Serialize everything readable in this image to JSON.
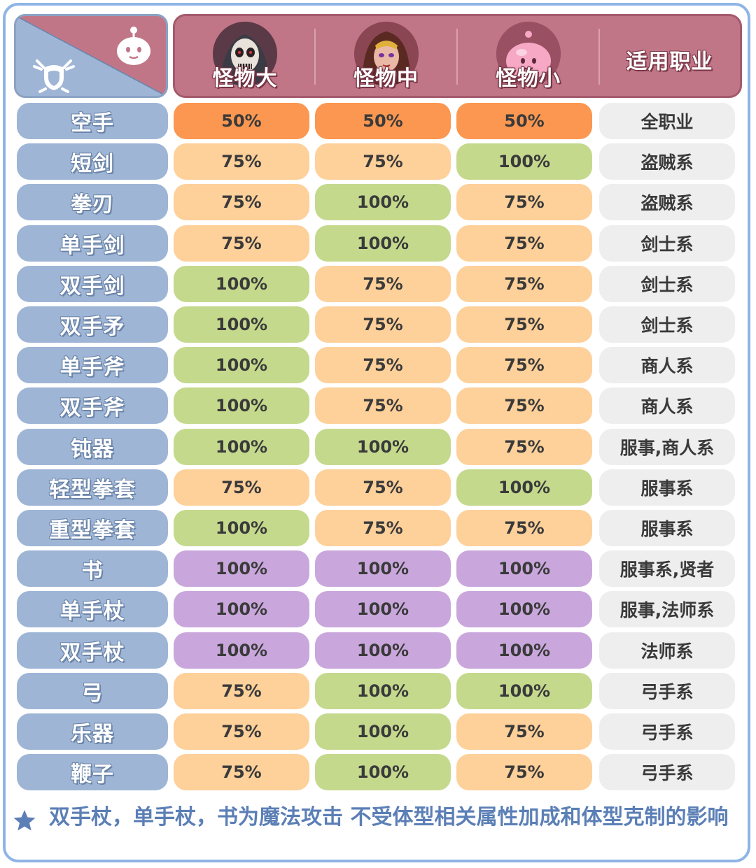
{
  "colors": {
    "p50": "#fb9750",
    "p75": "#fed09a",
    "p100": "#c5d98d",
    "magic": "#c9a7dc"
  },
  "corner": {
    "left_icon": "class-emblem-icon",
    "right_icon": "poring-face-icon"
  },
  "header": {
    "columns": [
      {
        "label": "怪物大",
        "icon": "skeleton-monster-icon"
      },
      {
        "label": "怪物中",
        "icon": "female-monster-icon"
      },
      {
        "label": "怪物小",
        "icon": "poring-monster-icon"
      }
    ],
    "job_label": "适用职业"
  },
  "rows": [
    {
      "weapon": "空手",
      "cells": [
        {
          "v": "50%",
          "c": "p50"
        },
        {
          "v": "50%",
          "c": "p50"
        },
        {
          "v": "50%",
          "c": "p50"
        }
      ],
      "job": "全职业"
    },
    {
      "weapon": "短剑",
      "cells": [
        {
          "v": "75%",
          "c": "p75"
        },
        {
          "v": "75%",
          "c": "p75"
        },
        {
          "v": "100%",
          "c": "p100"
        }
      ],
      "job": "盗贼系"
    },
    {
      "weapon": "拳刃",
      "cells": [
        {
          "v": "75%",
          "c": "p75"
        },
        {
          "v": "100%",
          "c": "p100"
        },
        {
          "v": "75%",
          "c": "p75"
        }
      ],
      "job": "盗贼系"
    },
    {
      "weapon": "单手剑",
      "cells": [
        {
          "v": "75%",
          "c": "p75"
        },
        {
          "v": "100%",
          "c": "p100"
        },
        {
          "v": "75%",
          "c": "p75"
        }
      ],
      "job": "剑士系"
    },
    {
      "weapon": "双手剑",
      "cells": [
        {
          "v": "100%",
          "c": "p100"
        },
        {
          "v": "75%",
          "c": "p75"
        },
        {
          "v": "75%",
          "c": "p75"
        }
      ],
      "job": "剑士系"
    },
    {
      "weapon": "双手矛",
      "cells": [
        {
          "v": "100%",
          "c": "p100"
        },
        {
          "v": "75%",
          "c": "p75"
        },
        {
          "v": "75%",
          "c": "p75"
        }
      ],
      "job": "剑士系"
    },
    {
      "weapon": "单手斧",
      "cells": [
        {
          "v": "100%",
          "c": "p100"
        },
        {
          "v": "75%",
          "c": "p75"
        },
        {
          "v": "75%",
          "c": "p75"
        }
      ],
      "job": "商人系"
    },
    {
      "weapon": "双手斧",
      "cells": [
        {
          "v": "100%",
          "c": "p100"
        },
        {
          "v": "75%",
          "c": "p75"
        },
        {
          "v": "75%",
          "c": "p75"
        }
      ],
      "job": "商人系"
    },
    {
      "weapon": "钝器",
      "cells": [
        {
          "v": "100%",
          "c": "p100"
        },
        {
          "v": "100%",
          "c": "p100"
        },
        {
          "v": "75%",
          "c": "p75"
        }
      ],
      "job": "服事,商人系"
    },
    {
      "weapon": "轻型拳套",
      "cells": [
        {
          "v": "75%",
          "c": "p75"
        },
        {
          "v": "75%",
          "c": "p75"
        },
        {
          "v": "100%",
          "c": "p100"
        }
      ],
      "job": "服事系"
    },
    {
      "weapon": "重型拳套",
      "cells": [
        {
          "v": "100%",
          "c": "p100"
        },
        {
          "v": "75%",
          "c": "p75"
        },
        {
          "v": "75%",
          "c": "p75"
        }
      ],
      "job": "服事系"
    },
    {
      "weapon": "书",
      "cells": [
        {
          "v": "100%",
          "c": "magic"
        },
        {
          "v": "100%",
          "c": "magic"
        },
        {
          "v": "100%",
          "c": "magic"
        }
      ],
      "job": "服事系,贤者"
    },
    {
      "weapon": "单手杖",
      "cells": [
        {
          "v": "100%",
          "c": "magic"
        },
        {
          "v": "100%",
          "c": "magic"
        },
        {
          "v": "100%",
          "c": "magic"
        }
      ],
      "job": "服事,法师系"
    },
    {
      "weapon": "双手杖",
      "cells": [
        {
          "v": "100%",
          "c": "magic"
        },
        {
          "v": "100%",
          "c": "magic"
        },
        {
          "v": "100%",
          "c": "magic"
        }
      ],
      "job": "法师系"
    },
    {
      "weapon": "弓",
      "cells": [
        {
          "v": "75%",
          "c": "p75"
        },
        {
          "v": "100%",
          "c": "p100"
        },
        {
          "v": "100%",
          "c": "p100"
        }
      ],
      "job": "弓手系"
    },
    {
      "weapon": "乐器",
      "cells": [
        {
          "v": "75%",
          "c": "p75"
        },
        {
          "v": "100%",
          "c": "p100"
        },
        {
          "v": "75%",
          "c": "p75"
        }
      ],
      "job": "弓手系"
    },
    {
      "weapon": "鞭子",
      "cells": [
        {
          "v": "75%",
          "c": "p75"
        },
        {
          "v": "100%",
          "c": "p100"
        },
        {
          "v": "75%",
          "c": "p75"
        }
      ],
      "job": "弓手系"
    }
  ],
  "footer": {
    "icon": "star-icon",
    "note": "双手杖，单手杖，书为魔法攻击 不受体型相关属性加成和体型克制的影响"
  }
}
